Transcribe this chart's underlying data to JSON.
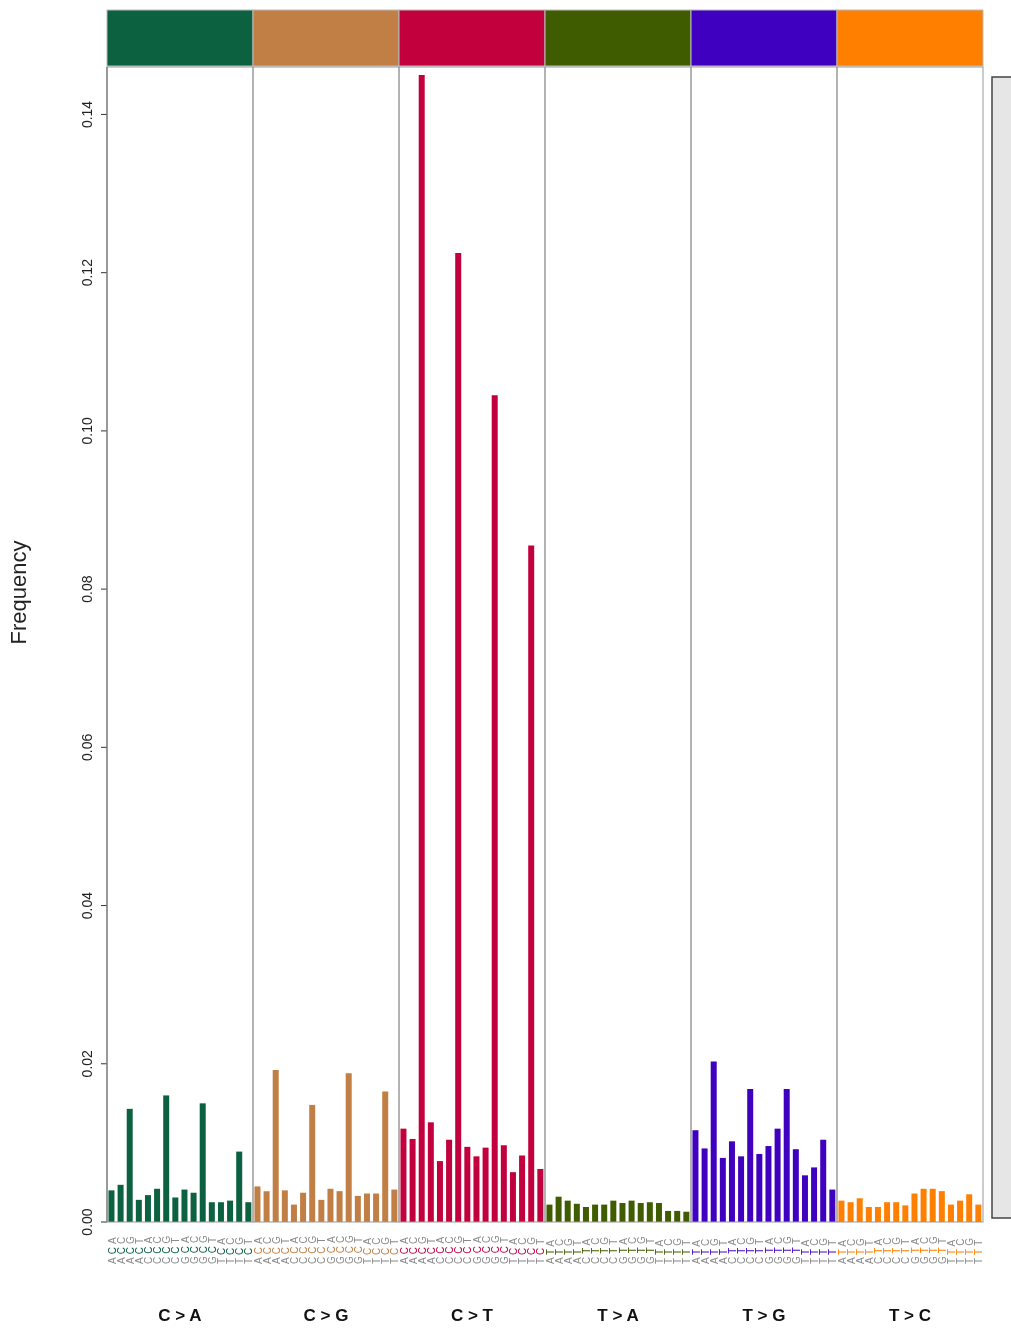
{
  "chart_data": {
    "type": "bar",
    "ylabel": "Frequency",
    "ylim": [
      0,
      0.146
    ],
    "yticks": [
      {
        "value": 0,
        "label": "0.00"
      },
      {
        "value": 0.02,
        "label": "0.02"
      },
      {
        "value": 0.04,
        "label": "0.04"
      },
      {
        "value": 0.06,
        "label": "0.06"
      },
      {
        "value": 0.08,
        "label": "0.08"
      },
      {
        "value": 0.1,
        "label": "0.10"
      },
      {
        "value": 0.12,
        "label": "0.12"
      },
      {
        "value": 0.14,
        "label": "0.14"
      }
    ],
    "annotations": [
      "C > A",
      "C > G",
      "C > T",
      "T > A",
      "T > G",
      "T > C"
    ],
    "categories": [
      "ACA",
      "ACC",
      "ACG",
      "ACT",
      "CCA",
      "CCC",
      "CCG",
      "CCT",
      "GCA",
      "GCC",
      "GCG",
      "GCT",
      "TCA",
      "TCC",
      "TCG",
      "TCT",
      "ACA",
      "ACC",
      "ACG",
      "ACT",
      "CCA",
      "CCC",
      "CCG",
      "CCT",
      "GCA",
      "GCC",
      "GCG",
      "GCT",
      "TCA",
      "TCC",
      "TCG",
      "TCT",
      "ACA",
      "ACC",
      "ACG",
      "ACT",
      "CCA",
      "CCC",
      "CCG",
      "CCT",
      "GCA",
      "GCC",
      "GCG",
      "GCT",
      "TCA",
      "TCC",
      "TCG",
      "TCT",
      "ATA",
      "ATC",
      "ATG",
      "ATT",
      "CTA",
      "CTC",
      "CTG",
      "CTT",
      "GTA",
      "GTC",
      "GTG",
      "GTT",
      "TTA",
      "TTC",
      "TTG",
      "TTT",
      "ATA",
      "ATC",
      "ATG",
      "ATT",
      "CTA",
      "CTC",
      "CTG",
      "CTT",
      "GTA",
      "GTC",
      "GTG",
      "GTT",
      "TTA",
      "TTC",
      "TTG",
      "TTT",
      "ATA",
      "ATC",
      "ATG",
      "ATT",
      "CTA",
      "CTC",
      "CTG",
      "CTT",
      "GTA",
      "GTC",
      "GTG",
      "GTT",
      "TTA",
      "TTC",
      "TTG",
      "TTT"
    ],
    "values": [
      0.004,
      0.0047,
      0.0143,
      0.0028,
      0.0034,
      0.0042,
      0.016,
      0.0031,
      0.0041,
      0.0037,
      0.015,
      0.0025,
      0.0025,
      0.0027,
      0.0089,
      0.0025,
      0.0045,
      0.0039,
      0.0192,
      0.004,
      0.0022,
      0.0037,
      0.0148,
      0.0028,
      0.0042,
      0.0039,
      0.0188,
      0.0033,
      0.0036,
      0.0036,
      0.0165,
      0.0041,
      0.0118,
      0.0105,
      0.145,
      0.0126,
      0.0077,
      0.0104,
      0.1225,
      0.0095,
      0.0083,
      0.0094,
      0.1045,
      0.0097,
      0.0063,
      0.0084,
      0.0855,
      0.0067,
      0.0022,
      0.0032,
      0.0027,
      0.0023,
      0.0019,
      0.0022,
      0.0022,
      0.0027,
      0.0024,
      0.0027,
      0.0024,
      0.0025,
      0.0024,
      0.0014,
      0.0014,
      0.0013,
      0.0116,
      0.0093,
      0.0203,
      0.0081,
      0.0102,
      0.0083,
      0.0168,
      0.0086,
      0.0096,
      0.0118,
      0.0168,
      0.0092,
      0.0059,
      0.0069,
      0.0104,
      0.0041,
      0.0027,
      0.0025,
      0.003,
      0.0019,
      0.0019,
      0.0025,
      0.0025,
      0.0021,
      0.0036,
      0.0042,
      0.0042,
      0.0039,
      0.0022,
      0.0027,
      0.0035,
      0.0022
    ],
    "colors": [
      "#0b6140",
      "#0b6140",
      "#0b6140",
      "#0b6140",
      "#0b6140",
      "#0b6140",
      "#0b6140",
      "#0b6140",
      "#0b6140",
      "#0b6140",
      "#0b6140",
      "#0b6140",
      "#0b6140",
      "#0b6140",
      "#0b6140",
      "#0b6140",
      "#c17f45",
      "#c17f45",
      "#c17f45",
      "#c17f45",
      "#c17f45",
      "#c17f45",
      "#c17f45",
      "#c17f45",
      "#c17f45",
      "#c17f45",
      "#c17f45",
      "#c17f45",
      "#c17f45",
      "#c17f45",
      "#c17f45",
      "#c17f45",
      "#c2003d",
      "#c2003d",
      "#c2003d",
      "#c2003d",
      "#c2003d",
      "#c2003d",
      "#c2003d",
      "#c2003d",
      "#c2003d",
      "#c2003d",
      "#c2003d",
      "#c2003d",
      "#c2003d",
      "#c2003d",
      "#c2003d",
      "#c2003d",
      "#405c00",
      "#405c00",
      "#405c00",
      "#405c00",
      "#405c00",
      "#405c00",
      "#405c00",
      "#405c00",
      "#405c00",
      "#405c00",
      "#405c00",
      "#405c00",
      "#405c00",
      "#405c00",
      "#405c00",
      "#405c00",
      "#4000c0",
      "#4000c0",
      "#4000c0",
      "#4000c0",
      "#4000c0",
      "#4000c0",
      "#4000c0",
      "#4000c0",
      "#4000c0",
      "#4000c0",
      "#4000c0",
      "#4000c0",
      "#4000c0",
      "#4000c0",
      "#4000c0",
      "#4000c0",
      "#ff7f00",
      "#ff7f00",
      "#ff7f00",
      "#ff7f00",
      "#ff7f00",
      "#ff7f00",
      "#ff7f00",
      "#ff7f00",
      "#ff7f00",
      "#ff7f00",
      "#ff7f00",
      "#ff7f00",
      "#ff7f00",
      "#ff7f00",
      "#ff7f00",
      "#ff7f00"
    ]
  }
}
